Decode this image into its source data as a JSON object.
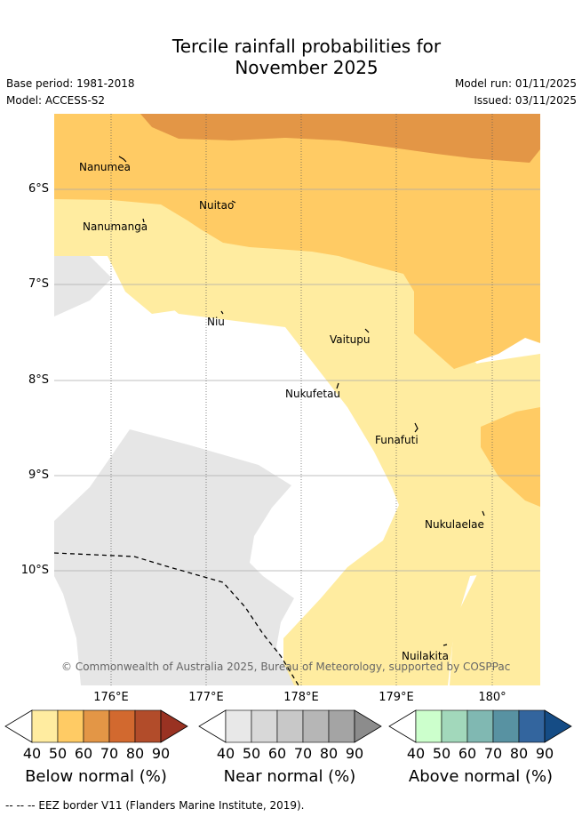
{
  "title_line1": "Tercile rainfall probabilities for",
  "title_line2": "November 2025",
  "base_period": "Base period: 1981-2018",
  "model": "Model: ACCESS-S2",
  "model_run": "Model run: 01/11/2025",
  "issued": "Issued: 03/11/2025",
  "lat_ticks": [
    "6°S",
    "7°S",
    "8°S",
    "9°S",
    "10°S"
  ],
  "lon_ticks": [
    "176°E",
    "177°E",
    "178°E",
    "179°E",
    "180°"
  ],
  "islands": [
    "Nanumea",
    "Nuitao",
    "Nanumanga",
    "Niu",
    "Vaitupu",
    "Nukufetau",
    "Funafuti",
    "Nukulaelae",
    "Nuilakita"
  ],
  "copyright": "© Commonwealth of Australia 2025, Bureau of Meteorology, supported by COSPPac",
  "colorbars": {
    "below": {
      "label": "Below normal (%)",
      "ticks": [
        "40",
        "50",
        "60",
        "70",
        "80",
        "90"
      ],
      "colors": [
        "#ffeca0",
        "#ffcb64",
        "#e39646",
        "#d2692f",
        "#b24c2a",
        "#993222"
      ]
    },
    "near": {
      "label": "Near normal (%)",
      "ticks": [
        "40",
        "50",
        "60",
        "70",
        "80",
        "90"
      ],
      "colors": [
        "#e8e8e8",
        "#d8d8d8",
        "#c8c8c8",
        "#b6b6b6",
        "#a4a4a4",
        "#8c8c8c"
      ]
    },
    "above": {
      "label": "Above normal (%)",
      "ticks": [
        "40",
        "50",
        "60",
        "70",
        "80",
        "90"
      ],
      "colors": [
        "#ccffcc",
        "#a2d8bb",
        "#80b8b2",
        "#5892a2",
        "#33659e",
        "#154c85"
      ]
    }
  },
  "footnote": "--  --  -- EEZ border V11 (Flanders Marine Institute, 2019).",
  "map_colors": {
    "below_50": "#ffcb64",
    "below_40": "#ffeca0",
    "below_60": "#e39646",
    "near_40": "#e6e6e6"
  }
}
